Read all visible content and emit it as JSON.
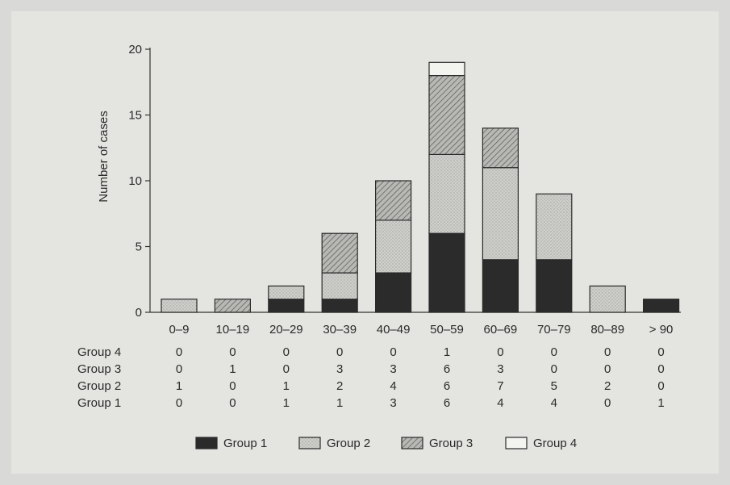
{
  "chart_data": {
    "type": "bar",
    "stacked": true,
    "ylabel": "Number of cases",
    "xlabel": "",
    "ylim": [
      0,
      20
    ],
    "yticks": [
      0,
      5,
      10,
      15,
      20
    ],
    "grid": false,
    "legend_position": "bottom",
    "categories": [
      "0–9",
      "10–19",
      "20–29",
      "30–39",
      "40–49",
      "50–59",
      "60–69",
      "70–79",
      "80–89",
      "> 90"
    ],
    "series": [
      {
        "name": "Group 1",
        "values": [
          0,
          0,
          1,
          1,
          3,
          6,
          4,
          4,
          0,
          1
        ],
        "color": "#2b2b2b",
        "pattern": "solid"
      },
      {
        "name": "Group 2",
        "values": [
          1,
          0,
          1,
          2,
          4,
          6,
          7,
          5,
          2,
          0
        ],
        "color": "#c9c9c7",
        "pattern": "light-stipple"
      },
      {
        "name": "Group 3",
        "values": [
          0,
          1,
          0,
          3,
          3,
          6,
          3,
          0,
          0,
          0
        ],
        "color": "#a9a9a6",
        "pattern": "hatch"
      },
      {
        "name": "Group 4",
        "values": [
          0,
          0,
          0,
          0,
          0,
          1,
          0,
          0,
          0,
          0
        ],
        "color": "#f2f2ef",
        "pattern": "empty"
      }
    ],
    "table": {
      "rows": [
        {
          "label": "Group 4",
          "values": [
            "0",
            "0",
            "0",
            "0",
            "0",
            "1",
            "0",
            "0",
            "0",
            "0"
          ]
        },
        {
          "label": "Group 3",
          "values": [
            "0",
            "1",
            "0",
            "3",
            "3",
            "6",
            "3",
            "0",
            "0",
            "0"
          ]
        },
        {
          "label": "Group 2",
          "values": [
            "1",
            "0",
            "1",
            "2",
            "4",
            "6",
            "7",
            "5",
            "2",
            "0"
          ]
        },
        {
          "label": "Group 1",
          "values": [
            "0",
            "0",
            "1",
            "1",
            "3",
            "6",
            "4",
            "4",
            "0",
            "1"
          ]
        }
      ]
    },
    "legend": [
      "Group 1",
      "Group 2",
      "Group 3",
      "Group 4"
    ]
  }
}
